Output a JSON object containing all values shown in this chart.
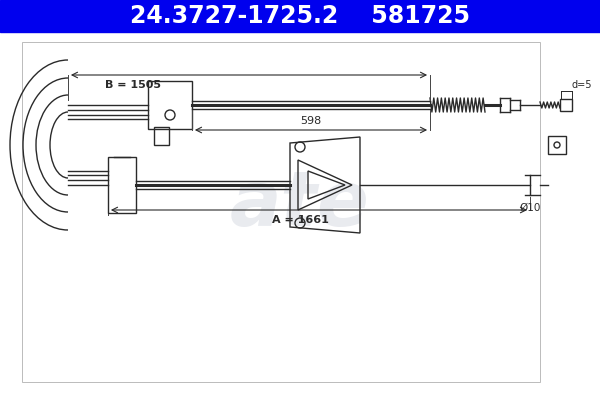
{
  "bg_color": "#ffffff",
  "header_bg": "#0000ee",
  "header_text_color": "#ffffff",
  "header_part1": "24.3727-1725.2",
  "header_part2": "581725",
  "drawing_bg": "#ffffff",
  "line_color": "#2a2a2a",
  "dim_color": "#2a2a2a",
  "watermark_color": "#c8cdd8",
  "dim_B": "B = 1505",
  "dim_A": "A = 1661",
  "dim_598": "598",
  "dim_d5": "d=5",
  "dim_d10": "Ø10"
}
